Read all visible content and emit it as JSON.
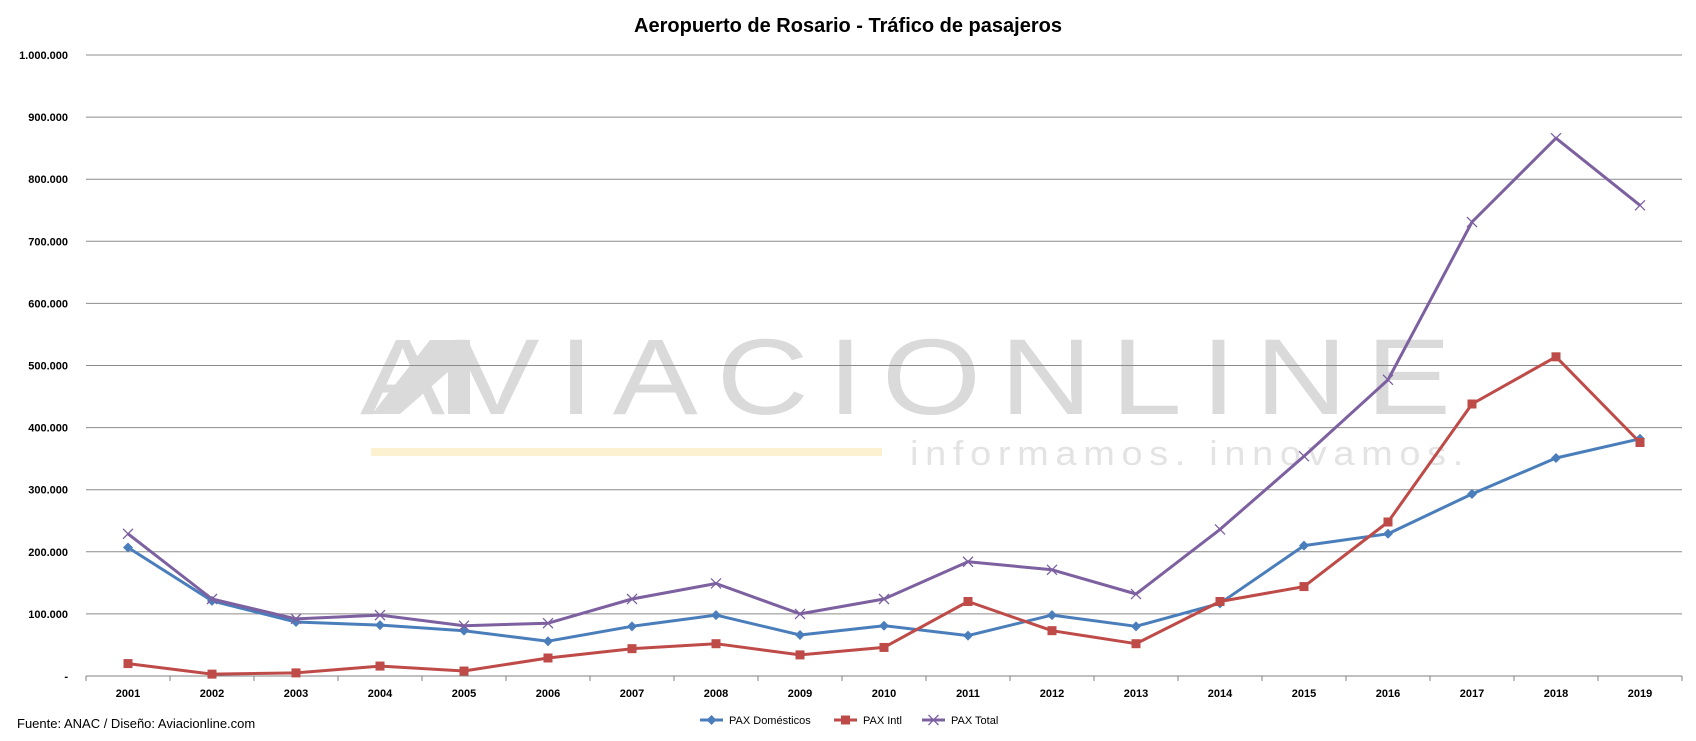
{
  "chart_data": {
    "type": "line",
    "title": "Aeropuerto de Rosario - Tráfico de pasajeros",
    "xlabel": "",
    "ylabel": "",
    "x": [
      "2001",
      "2002",
      "2003",
      "2004",
      "2005",
      "2006",
      "2007",
      "2008",
      "2009",
      "2010",
      "2011",
      "2012",
      "2013",
      "2014",
      "2015",
      "2016",
      "2017",
      "2018",
      "2019"
    ],
    "ylim": [
      0,
      1000000
    ],
    "y_ticks": [
      {
        "value": 0,
        "label": "-"
      },
      {
        "value": 100000,
        "label": "100.000"
      },
      {
        "value": 200000,
        "label": "200.000"
      },
      {
        "value": 300000,
        "label": "300.000"
      },
      {
        "value": 400000,
        "label": "400.000"
      },
      {
        "value": 500000,
        "label": "500.000"
      },
      {
        "value": 600000,
        "label": "600.000"
      },
      {
        "value": 700000,
        "label": "700.000"
      },
      {
        "value": 800000,
        "label": "800.000"
      },
      {
        "value": 900000,
        "label": "900.000"
      },
      {
        "value": 1000000,
        "label": "1.000.000"
      }
    ],
    "grid": true,
    "legend_position": "bottom",
    "series": [
      {
        "name": "PAX Domésticos",
        "color": "#4a7ebb",
        "marker": "diamond",
        "values": [
          207000,
          121000,
          87000,
          82000,
          73000,
          56000,
          80000,
          98000,
          66000,
          81000,
          65000,
          98000,
          80000,
          117000,
          210000,
          229000,
          293000,
          351000,
          382000
        ]
      },
      {
        "name": "PAX Intl",
        "color": "#be4b48",
        "marker": "square",
        "values": [
          20000,
          3000,
          5000,
          16000,
          8000,
          29000,
          44000,
          52000,
          34000,
          46000,
          120000,
          73000,
          52000,
          120000,
          144000,
          248000,
          438000,
          514000,
          376000
        ]
      },
      {
        "name": "PAX Total",
        "color": "#7d60a0",
        "marker": "x",
        "values": [
          229000,
          124000,
          92000,
          98000,
          81000,
          85000,
          124000,
          149000,
          100000,
          124000,
          184000,
          171000,
          132000,
          236000,
          354000,
          477000,
          731000,
          866000,
          758000
        ]
      }
    ]
  },
  "watermark": {
    "main": "AVIACIONLINE",
    "sub": "informamos. innovamos.",
    "stripe_color": "#fcf1d0"
  },
  "source": "Fuente: ANAC / Diseño: Aviacionline.com"
}
